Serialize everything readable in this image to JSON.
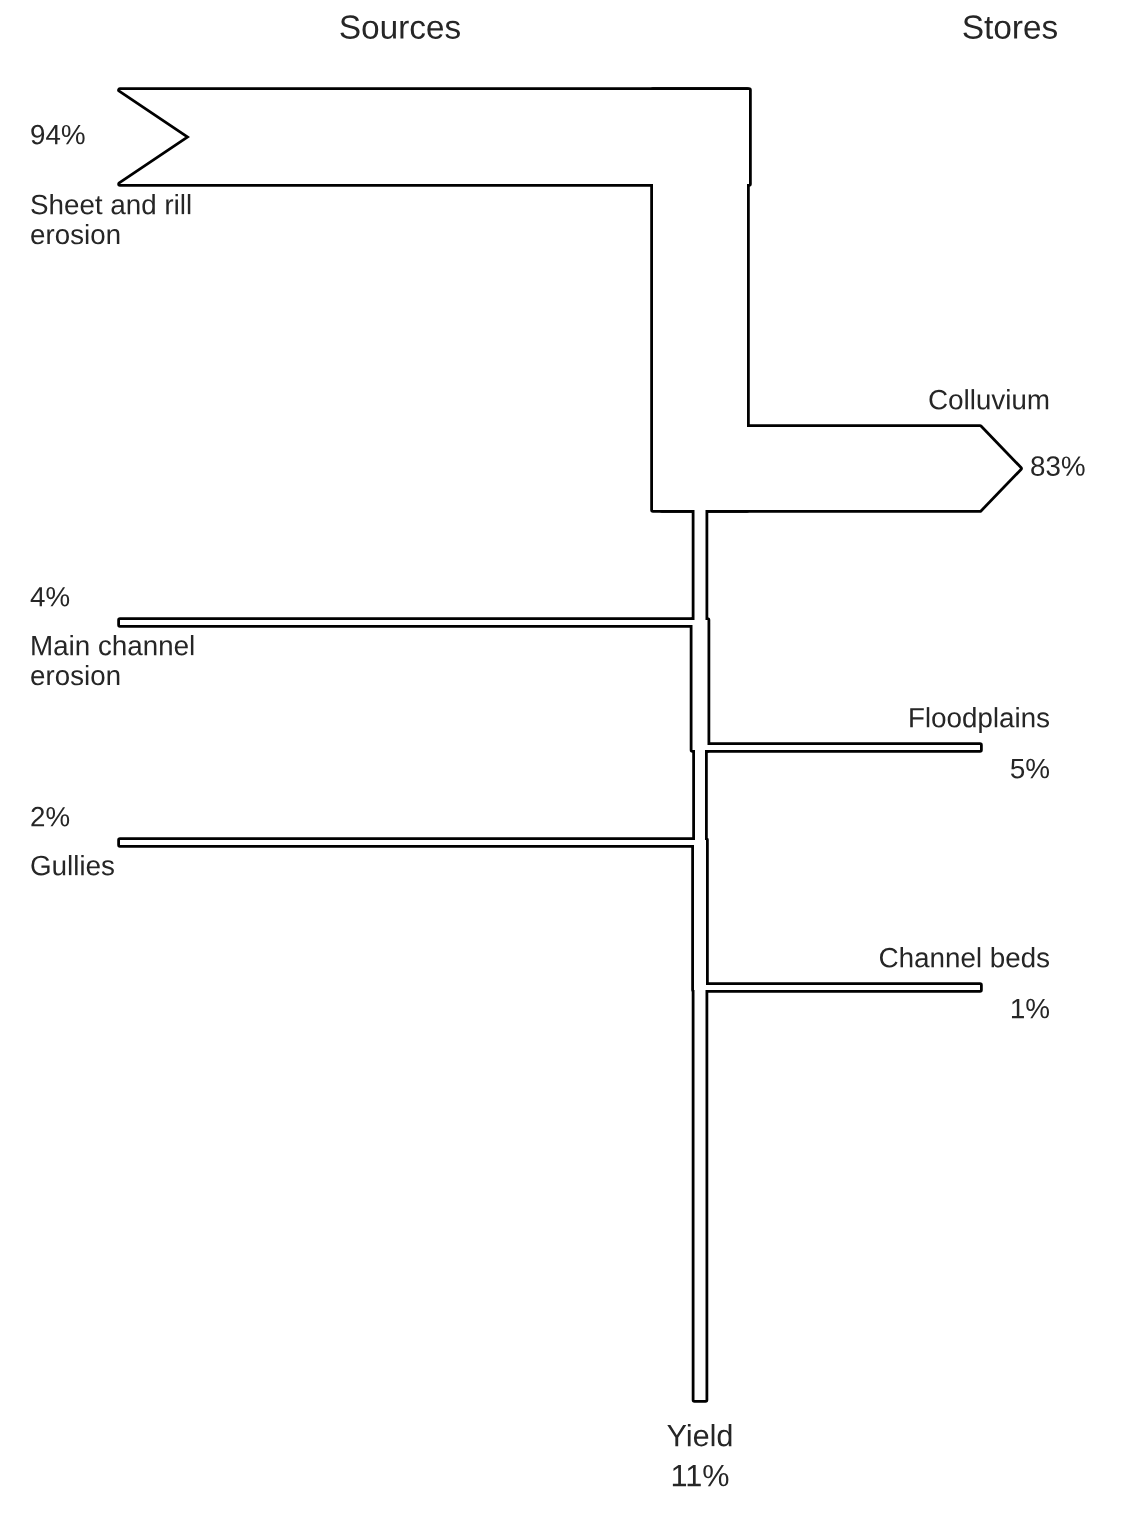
{
  "chart_data": {
    "type": "other",
    "categories": [
      "Sheet and rill\nerosion",
      "Main channel\nerosion",
      "Gullies",
      "Colluvium",
      "Floodplains",
      "Channel beds",
      "Yield"
    ],
    "series": [
      {
        "name": "Sources",
        "values": [
          94,
          4,
          2,
          null,
          null,
          null,
          null
        ],
        "value_labels": [
          "94%",
          "4%",
          "2%",
          null,
          null,
          null,
          null
        ]
      },
      {
        "name": "Stores",
        "values": [
          null,
          null,
          null,
          83,
          5,
          1,
          null
        ],
        "value_labels": [
          null,
          null,
          null,
          "83%",
          "5%",
          "1%",
          null
        ]
      },
      {
        "values": [
          null,
          null,
          null,
          null,
          null,
          null,
          11
        ],
        "value_labels": [
          null,
          null,
          null,
          null,
          null,
          null,
          "11%"
        ]
      }
    ]
  }
}
